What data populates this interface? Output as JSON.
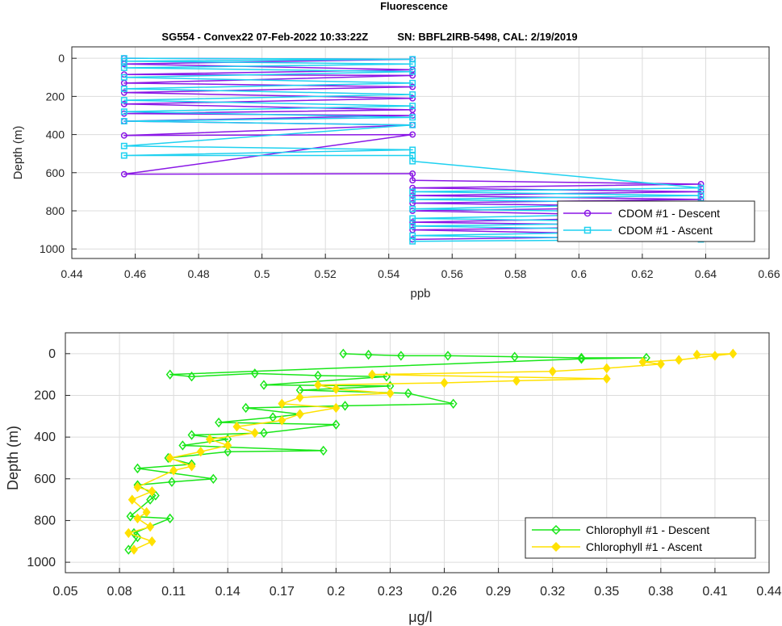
{
  "figure_title": "Fluorescence",
  "chart_data": [
    {
      "type": "line",
      "subtitle": "SG554 - Convex22 07-Feb-2022 10:33:22Z          SN: BBFL2IRB-5498, CAL: 2/19/2019",
      "xlabel": "ppb",
      "ylabel": "Depth (m)",
      "xlim": [
        0.44,
        0.66
      ],
      "ylim": [
        1050,
        -60
      ],
      "y_reversed": true,
      "xticks": [
        0.44,
        0.46,
        0.48,
        0.5,
        0.52,
        0.54,
        0.56,
        0.58,
        0.6,
        0.62,
        0.64,
        0.66
      ],
      "xtick_labels": [
        "0.44",
        "0.46",
        "0.48",
        "0.5",
        "0.52",
        "0.54",
        "0.56",
        "0.58",
        "0.6",
        "0.62",
        "0.64",
        "0.66"
      ],
      "yticks": [
        0,
        200,
        400,
        600,
        800,
        1000
      ],
      "ytick_labels": [
        "0",
        "200",
        "400",
        "600",
        "800",
        "1000"
      ],
      "grid": true,
      "legend_placement": "bottom-right",
      "series": [
        {
          "name": "CDOM #1 - Descent",
          "color": "#8a17e6",
          "marker": "circle",
          "x": [
            0.4565,
            0.5475,
            0.4565,
            0.5475,
            0.4565,
            0.5475,
            0.4565,
            0.5475,
            0.4565,
            0.5475,
            0.4565,
            0.5475,
            0.4565,
            0.5475,
            0.4565,
            0.5475,
            0.4565,
            0.5475,
            0.4565,
            0.5475,
            0.5475,
            0.6385,
            0.5475,
            0.6385,
            0.5475,
            0.6385,
            0.5475,
            0.6385,
            0.5475,
            0.6385,
            0.5475,
            0.6385,
            0.5475,
            0.6385,
            0.5475
          ],
          "y": [
            0,
            5,
            30,
            60,
            85,
            90,
            130,
            150,
            180,
            210,
            240,
            270,
            290,
            300,
            330,
            350,
            405,
            400,
            608,
            605,
            640,
            660,
            680,
            700,
            720,
            740,
            760,
            780,
            800,
            830,
            860,
            880,
            900,
            930,
            950
          ]
        },
        {
          "name": "CDOM #1 - Ascent",
          "color": "#1fd1f0",
          "marker": "square",
          "x": [
            0.5475,
            0.6385,
            0.5475,
            0.6385,
            0.5475,
            0.6385,
            0.5475,
            0.6385,
            0.5475,
            0.6385,
            0.5475,
            0.6385,
            0.5475,
            0.6385,
            0.5475,
            0.5475,
            0.4565,
            0.5475,
            0.4565,
            0.5475,
            0.4565,
            0.5475,
            0.4565,
            0.5475,
            0.4565,
            0.5475,
            0.4565,
            0.5475,
            0.4565,
            0.5475,
            0.4565,
            0.5475,
            0.4565,
            0.5475,
            0.4565
          ],
          "y": [
            960,
            950,
            930,
            905,
            880,
            860,
            840,
            810,
            790,
            760,
            740,
            720,
            700,
            680,
            540,
            510,
            510,
            480,
            460,
            350,
            330,
            310,
            280,
            250,
            220,
            190,
            160,
            130,
            100,
            70,
            50,
            30,
            15,
            5,
            0
          ]
        }
      ]
    },
    {
      "type": "line",
      "xlabel": "μg/l",
      "ylabel": "Depth (m)",
      "xlim": [
        0.05,
        0.44
      ],
      "ylim": [
        1050,
        -100
      ],
      "y_reversed": true,
      "xticks": [
        0.05,
        0.08,
        0.11,
        0.14,
        0.17,
        0.2,
        0.23,
        0.26,
        0.29,
        0.32,
        0.35,
        0.38,
        0.41,
        0.44
      ],
      "xtick_labels": [
        "0.05",
        "0.08",
        "0.11",
        "0.14",
        "0.17",
        "0.2",
        "0.23",
        "0.26",
        "0.29",
        "0.32",
        "0.35",
        "0.38",
        "0.41",
        "0.44"
      ],
      "yticks": [
        0,
        200,
        400,
        600,
        800,
        1000
      ],
      "ytick_labels": [
        "0",
        "200",
        "400",
        "600",
        "800",
        "1000"
      ],
      "grid": true,
      "legend_placement": "bottom-right",
      "series": [
        {
          "name": "Chlorophyll #1 - Descent",
          "color": "#19e619",
          "marker": "diamond",
          "x": [
            0.204,
            0.218,
            0.236,
            0.262,
            0.299,
            0.336,
            0.372,
            0.336,
            0.108,
            0.12,
            0.155,
            0.19,
            0.228,
            0.16,
            0.23,
            0.18,
            0.24,
            0.265,
            0.205,
            0.15,
            0.18,
            0.165,
            0.135,
            0.2,
            0.16,
            0.12,
            0.14,
            0.115,
            0.193,
            0.14,
            0.107,
            0.12,
            0.09,
            0.132,
            0.109,
            0.09,
            0.1,
            0.097,
            0.086,
            0.108,
            0.088,
            0.09,
            0.085
          ],
          "y": [
            0,
            5,
            10,
            10,
            15,
            20,
            20,
            25,
            100,
            110,
            95,
            105,
            110,
            150,
            155,
            175,
            190,
            240,
            250,
            260,
            290,
            305,
            330,
            340,
            380,
            390,
            410,
            440,
            465,
            470,
            500,
            530,
            550,
            600,
            615,
            630,
            680,
            700,
            780,
            790,
            860,
            880,
            940
          ]
        },
        {
          "name": "Chlorophyll #1 - Ascent",
          "color": "#ffe100",
          "marker": "diamond",
          "x": [
            0.088,
            0.098,
            0.085,
            0.097,
            0.09,
            0.095,
            0.087,
            0.098,
            0.09,
            0.11,
            0.12,
            0.108,
            0.125,
            0.14,
            0.13,
            0.155,
            0.145,
            0.17,
            0.18,
            0.2,
            0.17,
            0.18,
            0.23,
            0.2,
            0.19,
            0.26,
            0.3,
            0.35,
            0.22,
            0.32,
            0.35,
            0.38,
            0.37,
            0.39,
            0.41,
            0.42,
            0.4
          ],
          "y": [
            940,
            900,
            860,
            830,
            790,
            760,
            700,
            660,
            640,
            560,
            540,
            500,
            470,
            440,
            410,
            380,
            350,
            320,
            290,
            260,
            240,
            210,
            190,
            170,
            150,
            140,
            130,
            120,
            100,
            85,
            70,
            50,
            40,
            30,
            10,
            0,
            5
          ]
        }
      ]
    }
  ]
}
